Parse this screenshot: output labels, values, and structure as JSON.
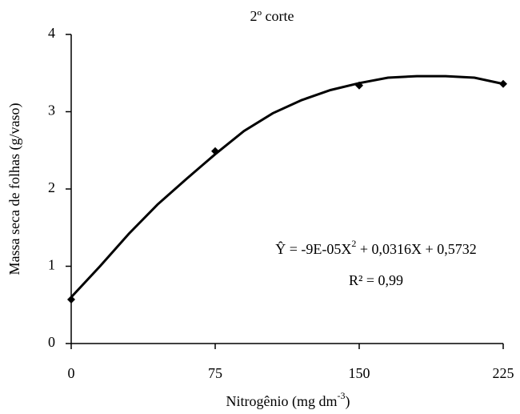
{
  "chart_data": {
    "type": "scatter",
    "title": "2º corte",
    "x_label": [
      "Nitrogênio (mg dm",
      "-3",
      ")"
    ],
    "y_label": "Massa seca de folhas (g/vaso)",
    "annotations": [
      [
        "Ŷ = -9E-05X",
        "2",
        " + 0,0316X + 0,5732"
      ],
      "R² = 0,99"
    ],
    "xlim": [
      0,
      225
    ],
    "xticks": [
      0,
      75,
      150,
      225
    ],
    "ylim": [
      0,
      4
    ],
    "yticks": [
      0,
      1,
      2,
      3,
      4
    ],
    "series": [
      {
        "style": "line",
        "color": "#000000",
        "x": [
          0,
          15,
          30,
          45,
          60,
          75,
          90,
          105,
          120,
          135,
          150,
          165,
          180,
          195,
          210,
          225
        ],
        "values": [
          0.6,
          1.0,
          1.42,
          1.8,
          2.13,
          2.45,
          2.75,
          2.98,
          3.15,
          3.28,
          3.37,
          3.44,
          3.46,
          3.46,
          3.44,
          3.36
        ]
      },
      {
        "style": "marker",
        "color": "#000000",
        "x": [
          0,
          75,
          150,
          225
        ],
        "values": [
          0.57,
          2.49,
          3.34,
          3.36
        ]
      }
    ]
  }
}
